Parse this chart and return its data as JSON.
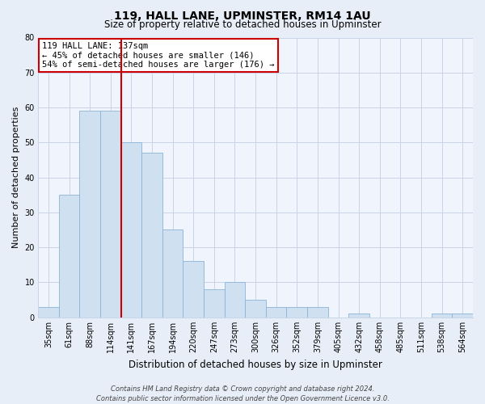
{
  "title": "119, HALL LANE, UPMINSTER, RM14 1AU",
  "subtitle": "Size of property relative to detached houses in Upminster",
  "xlabel": "Distribution of detached houses by size in Upminster",
  "ylabel": "Number of detached properties",
  "categories": [
    "35sqm",
    "61sqm",
    "88sqm",
    "114sqm",
    "141sqm",
    "167sqm",
    "194sqm",
    "220sqm",
    "247sqm",
    "273sqm",
    "300sqm",
    "326sqm",
    "352sqm",
    "379sqm",
    "405sqm",
    "432sqm",
    "458sqm",
    "485sqm",
    "511sqm",
    "538sqm",
    "564sqm"
  ],
  "values": [
    3,
    35,
    59,
    59,
    50,
    47,
    25,
    16,
    8,
    10,
    5,
    3,
    3,
    3,
    0,
    1,
    0,
    0,
    0,
    1,
    1
  ],
  "bar_color": "#cfe0f0",
  "bar_edge_color": "#8ab4d8",
  "vline_position": 3.5,
  "vline_color": "#cc0000",
  "annotation_line1": "119 HALL LANE: 137sqm",
  "annotation_line2": "← 45% of detached houses are smaller (146)",
  "annotation_line3": "54% of semi-detached houses are larger (176) →",
  "annotation_box_edgecolor": "#cc0000",
  "annotation_box_facecolor": "#ffffff",
  "ylim": [
    0,
    80
  ],
  "yticks": [
    0,
    10,
    20,
    30,
    40,
    50,
    60,
    70,
    80
  ],
  "grid_color": "#c8d4e8",
  "background_color": "#e8eef8",
  "plot_bg_color": "#f0f4fc",
  "footer_line1": "Contains HM Land Registry data © Crown copyright and database right 2024.",
  "footer_line2": "Contains public sector information licensed under the Open Government Licence v3.0.",
  "title_fontsize": 10,
  "subtitle_fontsize": 8.5,
  "xlabel_fontsize": 8.5,
  "ylabel_fontsize": 8,
  "tick_fontsize": 7,
  "annotation_fontsize": 7.5,
  "footer_fontsize": 6
}
